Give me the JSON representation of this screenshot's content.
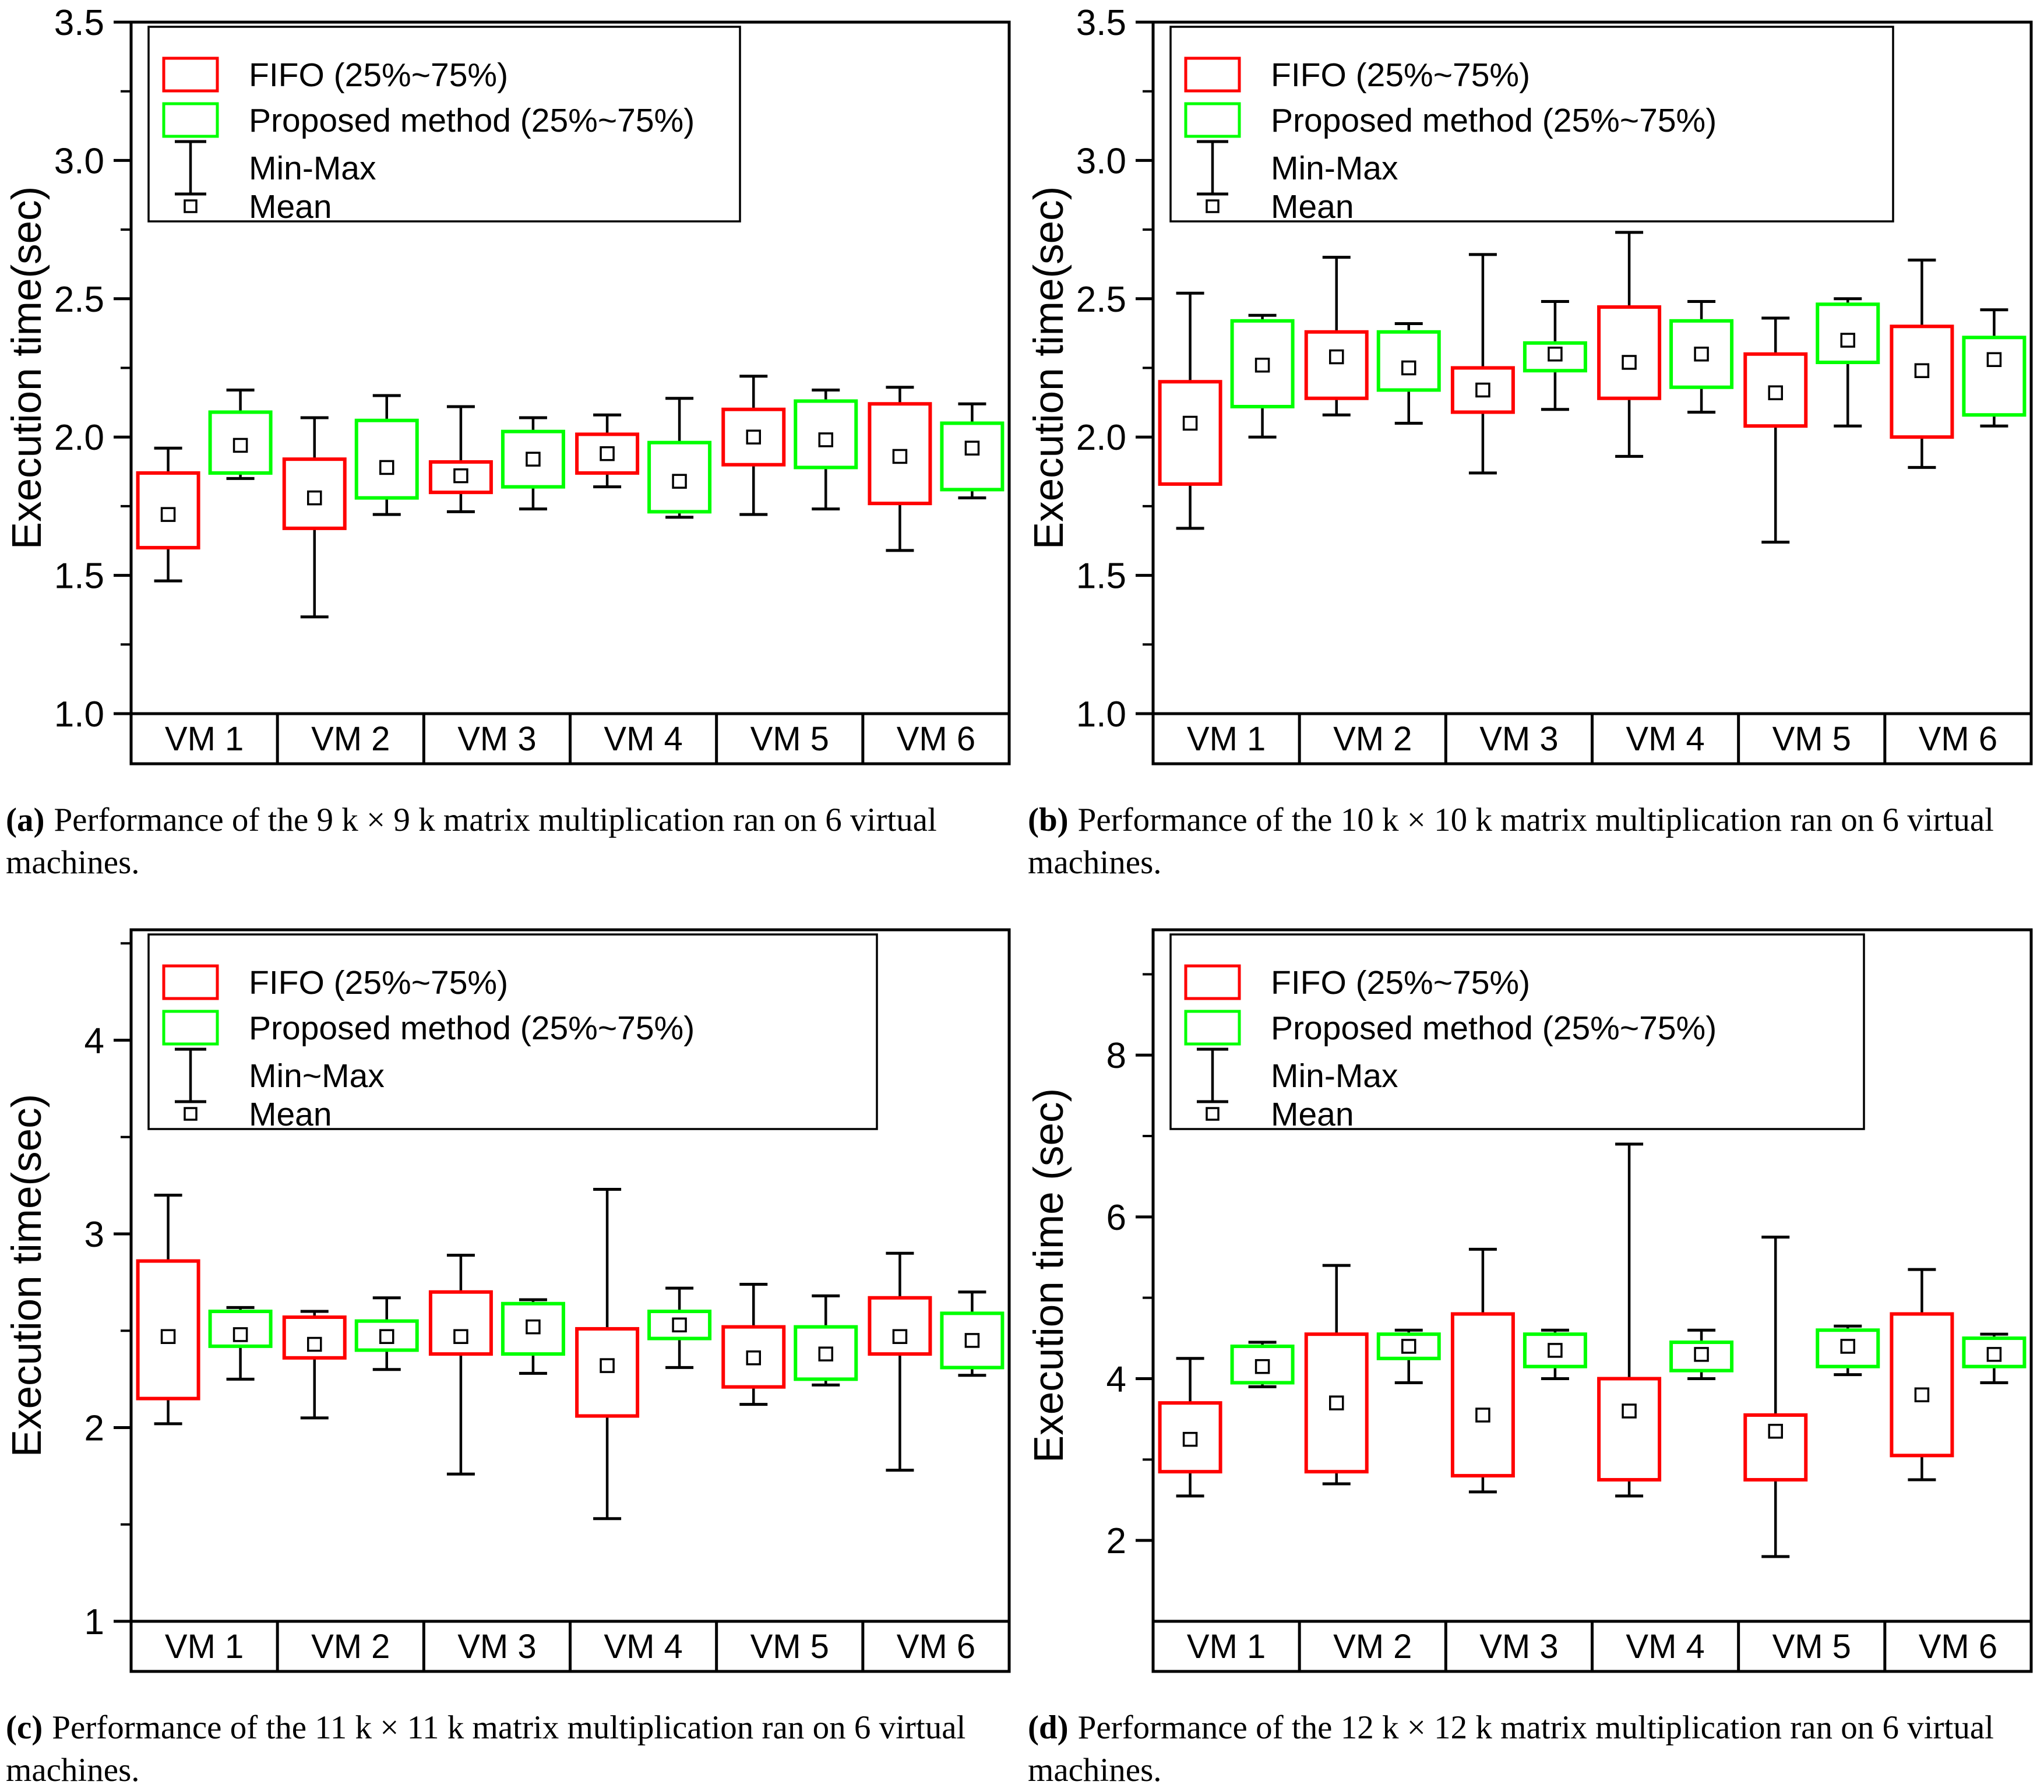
{
  "chart_data": [
    {
      "id": "a",
      "type": "boxplot",
      "ylabel": "Execution time(sec)",
      "ylim": [
        1.0,
        3.5
      ],
      "ytick_values": [
        3.5,
        3.0,
        2.5,
        2.0,
        1.5,
        1.0
      ],
      "ytick_labels": [
        "3.5",
        "3.0",
        "2.5",
        "2.0",
        "1.5",
        "1.0"
      ],
      "yminor_values": [
        3.25,
        2.75,
        2.25,
        1.75,
        1.25
      ],
      "categories": [
        "VM 1",
        "VM 2",
        "VM 3",
        "VM 4",
        "VM 5",
        "VM 6"
      ],
      "legend": {
        "fifo": "FIFO (25%~75%)",
        "proposed": "Proposed method (25%~75%)",
        "minmax": "Min-Max",
        "mean": "Mean"
      },
      "series": [
        {
          "name": "FIFO",
          "key": "fifo",
          "color": "#ff0000",
          "boxes": [
            {
              "min": 1.48,
              "q1": 1.6,
              "mean": 1.72,
              "q3": 1.87,
              "max": 1.96
            },
            {
              "min": 1.35,
              "q1": 1.67,
              "mean": 1.78,
              "q3": 1.92,
              "max": 2.07
            },
            {
              "min": 1.73,
              "q1": 1.8,
              "mean": 1.86,
              "q3": 1.91,
              "max": 2.11
            },
            {
              "min": 1.82,
              "q1": 1.87,
              "mean": 1.94,
              "q3": 2.01,
              "max": 2.08
            },
            {
              "min": 1.72,
              "q1": 1.9,
              "mean": 2.0,
              "q3": 2.1,
              "max": 2.22
            },
            {
              "min": 1.59,
              "q1": 1.76,
              "mean": 1.93,
              "q3": 2.12,
              "max": 2.18
            }
          ]
        },
        {
          "name": "Proposed method",
          "key": "proposed",
          "color": "#00ff00",
          "boxes": [
            {
              "min": 1.85,
              "q1": 1.87,
              "mean": 1.97,
              "q3": 2.09,
              "max": 2.17
            },
            {
              "min": 1.72,
              "q1": 1.78,
              "mean": 1.89,
              "q3": 2.06,
              "max": 2.15
            },
            {
              "min": 1.74,
              "q1": 1.82,
              "mean": 1.92,
              "q3": 2.02,
              "max": 2.07
            },
            {
              "min": 1.71,
              "q1": 1.73,
              "mean": 1.84,
              "q3": 1.98,
              "max": 2.14
            },
            {
              "min": 1.74,
              "q1": 1.89,
              "mean": 1.99,
              "q3": 2.13,
              "max": 2.17
            },
            {
              "min": 1.78,
              "q1": 1.81,
              "mean": 1.96,
              "q3": 2.05,
              "max": 2.12
            }
          ]
        }
      ],
      "caption_label": "(a)",
      "caption_text": "Performance of the 9 k × 9 k matrix multiplication ran on 6 virtual machines."
    },
    {
      "id": "b",
      "type": "boxplot",
      "ylabel": "Execution time(sec)",
      "ylim": [
        1.0,
        3.5
      ],
      "ytick_values": [
        3.5,
        3.0,
        2.5,
        2.0,
        1.5,
        1.0
      ],
      "ytick_labels": [
        "3.5",
        "3.0",
        "2.5",
        "2.0",
        "1.5",
        "1.0"
      ],
      "yminor_values": [
        3.25,
        2.75,
        2.25,
        1.75,
        1.25
      ],
      "categories": [
        "VM 1",
        "VM 2",
        "VM 3",
        "VM 4",
        "VM 5",
        "VM 6"
      ],
      "legend": {
        "fifo": "FIFO (25%~75%)",
        "proposed": "Proposed method (25%~75%)",
        "minmax": "Min-Max",
        "mean": "Mean"
      },
      "series": [
        {
          "name": "FIFO",
          "key": "fifo",
          "color": "#ff0000",
          "boxes": [
            {
              "min": 1.67,
              "q1": 1.83,
              "mean": 2.05,
              "q3": 2.2,
              "max": 2.52
            },
            {
              "min": 2.08,
              "q1": 2.14,
              "mean": 2.29,
              "q3": 2.38,
              "max": 2.65
            },
            {
              "min": 1.87,
              "q1": 2.09,
              "mean": 2.17,
              "q3": 2.25,
              "max": 2.66
            },
            {
              "min": 1.93,
              "q1": 2.14,
              "mean": 2.27,
              "q3": 2.47,
              "max": 2.74
            },
            {
              "min": 1.62,
              "q1": 2.04,
              "mean": 2.16,
              "q3": 2.3,
              "max": 2.43
            },
            {
              "min": 1.89,
              "q1": 2.0,
              "mean": 2.24,
              "q3": 2.4,
              "max": 2.64
            }
          ]
        },
        {
          "name": "Proposed method",
          "key": "proposed",
          "color": "#00ff00",
          "boxes": [
            {
              "min": 2.0,
              "q1": 2.11,
              "mean": 2.26,
              "q3": 2.42,
              "max": 2.44
            },
            {
              "min": 2.05,
              "q1": 2.17,
              "mean": 2.25,
              "q3": 2.38,
              "max": 2.41
            },
            {
              "min": 2.1,
              "q1": 2.24,
              "mean": 2.3,
              "q3": 2.34,
              "max": 2.49
            },
            {
              "min": 2.09,
              "q1": 2.18,
              "mean": 2.3,
              "q3": 2.42,
              "max": 2.49
            },
            {
              "min": 2.04,
              "q1": 2.27,
              "mean": 2.35,
              "q3": 2.48,
              "max": 2.5
            },
            {
              "min": 2.04,
              "q1": 2.08,
              "mean": 2.28,
              "q3": 2.36,
              "max": 2.46
            }
          ]
        }
      ],
      "caption_label": "(b)",
      "caption_text": "Performance of the 10 k × 10 k matrix multiplication ran on 6 virtual machines."
    },
    {
      "id": "c",
      "type": "boxplot",
      "ylabel": "Execution time(sec)",
      "ylim": [
        1.0,
        4.57
      ],
      "ytick_values": [
        4,
        3,
        2,
        1
      ],
      "ytick_labels": [
        "4",
        "3",
        "2",
        "1"
      ],
      "yminor_values": [
        4.5,
        3.5,
        2.5,
        1.5
      ],
      "categories": [
        "VM 1",
        "VM 2",
        "VM 3",
        "VM 4",
        "VM 5",
        "VM 6"
      ],
      "legend": {
        "fifo": "FIFO (25%~75%)",
        "proposed": "Proposed method (25%~75%)",
        "minmax": "Min~Max",
        "mean": "Mean"
      },
      "series": [
        {
          "name": "FIFO",
          "key": "fifo",
          "color": "#ff0000",
          "boxes": [
            {
              "min": 2.02,
              "q1": 2.15,
              "mean": 2.47,
              "q3": 2.86,
              "max": 3.2
            },
            {
              "min": 2.05,
              "q1": 2.36,
              "mean": 2.43,
              "q3": 2.57,
              "max": 2.6
            },
            {
              "min": 1.76,
              "q1": 2.38,
              "mean": 2.47,
              "q3": 2.7,
              "max": 2.89
            },
            {
              "min": 1.53,
              "q1": 2.06,
              "mean": 2.32,
              "q3": 2.51,
              "max": 3.23
            },
            {
              "min": 2.12,
              "q1": 2.21,
              "mean": 2.36,
              "q3": 2.52,
              "max": 2.74
            },
            {
              "min": 1.78,
              "q1": 2.38,
              "mean": 2.47,
              "q3": 2.67,
              "max": 2.9
            }
          ]
        },
        {
          "name": "Proposed method",
          "key": "proposed",
          "color": "#00ff00",
          "boxes": [
            {
              "min": 2.25,
              "q1": 2.42,
              "mean": 2.48,
              "q3": 2.6,
              "max": 2.62
            },
            {
              "min": 2.3,
              "q1": 2.4,
              "mean": 2.47,
              "q3": 2.55,
              "max": 2.67
            },
            {
              "min": 2.28,
              "q1": 2.38,
              "mean": 2.52,
              "q3": 2.64,
              "max": 2.66
            },
            {
              "min": 2.31,
              "q1": 2.46,
              "mean": 2.53,
              "q3": 2.6,
              "max": 2.72
            },
            {
              "min": 2.22,
              "q1": 2.25,
              "mean": 2.38,
              "q3": 2.52,
              "max": 2.68
            },
            {
              "min": 2.27,
              "q1": 2.31,
              "mean": 2.45,
              "q3": 2.59,
              "max": 2.7
            }
          ]
        }
      ],
      "caption_label": "(c)",
      "caption_text": "Performance of the 11 k × 11 k matrix multiplication ran on 6 virtual machines."
    },
    {
      "id": "d",
      "type": "boxplot",
      "ylabel": "Execution time (sec)",
      "ylim": [
        1.0,
        9.55
      ],
      "ytick_values": [
        8,
        6,
        4,
        2
      ],
      "ytick_labels": [
        "8",
        "6",
        "4",
        "2"
      ],
      "yminor_values": [
        9,
        7,
        5,
        3
      ],
      "categories": [
        "VM 1",
        "VM 2",
        "VM 3",
        "VM 4",
        "VM 5",
        "VM 6"
      ],
      "legend": {
        "fifo": "FIFO (25%~75%)",
        "proposed": "Proposed method (25%~75%)",
        "minmax": "Min-Max",
        "mean": "Mean"
      },
      "series": [
        {
          "name": "FIFO",
          "key": "fifo",
          "color": "#ff0000",
          "boxes": [
            {
              "min": 2.55,
              "q1": 2.85,
              "mean": 3.25,
              "q3": 3.7,
              "max": 4.25
            },
            {
              "min": 2.7,
              "q1": 2.85,
              "mean": 3.7,
              "q3": 4.55,
              "max": 5.4
            },
            {
              "min": 2.6,
              "q1": 2.8,
              "mean": 3.55,
              "q3": 4.8,
              "max": 5.6
            },
            {
              "min": 2.55,
              "q1": 2.75,
              "mean": 3.6,
              "q3": 4.0,
              "max": 6.9
            },
            {
              "min": 1.8,
              "q1": 2.75,
              "mean": 3.35,
              "q3": 3.55,
              "max": 5.75
            },
            {
              "min": 2.75,
              "q1": 3.05,
              "mean": 3.8,
              "q3": 4.8,
              "max": 5.35
            }
          ]
        },
        {
          "name": "Proposed method",
          "key": "proposed",
          "color": "#00ff00",
          "boxes": [
            {
              "min": 3.9,
              "q1": 3.95,
              "mean": 4.15,
              "q3": 4.4,
              "max": 4.45
            },
            {
              "min": 3.95,
              "q1": 4.25,
              "mean": 4.4,
              "q3": 4.55,
              "max": 4.6
            },
            {
              "min": 4.0,
              "q1": 4.15,
              "mean": 4.35,
              "q3": 4.55,
              "max": 4.6
            },
            {
              "min": 4.0,
              "q1": 4.1,
              "mean": 4.3,
              "q3": 4.45,
              "max": 4.6
            },
            {
              "min": 4.05,
              "q1": 4.15,
              "mean": 4.4,
              "q3": 4.6,
              "max": 4.65
            },
            {
              "min": 3.95,
              "q1": 4.15,
              "mean": 4.3,
              "q3": 4.5,
              "max": 4.55
            }
          ]
        }
      ],
      "caption_label": "(d)",
      "caption_text": "Performance of the 12 k × 12 k matrix multiplication ran on 6 virtual machines."
    }
  ]
}
